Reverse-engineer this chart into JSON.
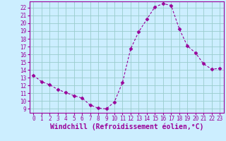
{
  "x": [
    0,
    1,
    2,
    3,
    4,
    5,
    6,
    7,
    8,
    9,
    10,
    11,
    12,
    13,
    14,
    15,
    16,
    17,
    18,
    19,
    20,
    21,
    22,
    23
  ],
  "y": [
    13.3,
    12.5,
    12.1,
    11.5,
    11.1,
    10.7,
    10.4,
    9.5,
    9.1,
    9.0,
    9.9,
    12.4,
    16.7,
    18.9,
    20.5,
    22.1,
    22.5,
    22.3,
    19.3,
    17.1,
    16.2,
    14.8,
    14.1,
    14.2
  ],
  "line_color": "#990099",
  "marker": "D",
  "marker_size": 2.5,
  "bg_color": "#cceeff",
  "grid_color": "#99cccc",
  "xlabel": "Windchill (Refroidissement éolien,°C)",
  "xlim": [
    -0.5,
    23.5
  ],
  "ylim": [
    8.5,
    22.8
  ],
  "yticks": [
    9,
    10,
    11,
    12,
    13,
    14,
    15,
    16,
    17,
    18,
    19,
    20,
    21,
    22
  ],
  "xticks": [
    0,
    1,
    2,
    3,
    4,
    5,
    6,
    7,
    8,
    9,
    10,
    11,
    12,
    13,
    14,
    15,
    16,
    17,
    18,
    19,
    20,
    21,
    22,
    23
  ],
  "tick_fontsize": 5.5,
  "xlabel_fontsize": 7.0
}
